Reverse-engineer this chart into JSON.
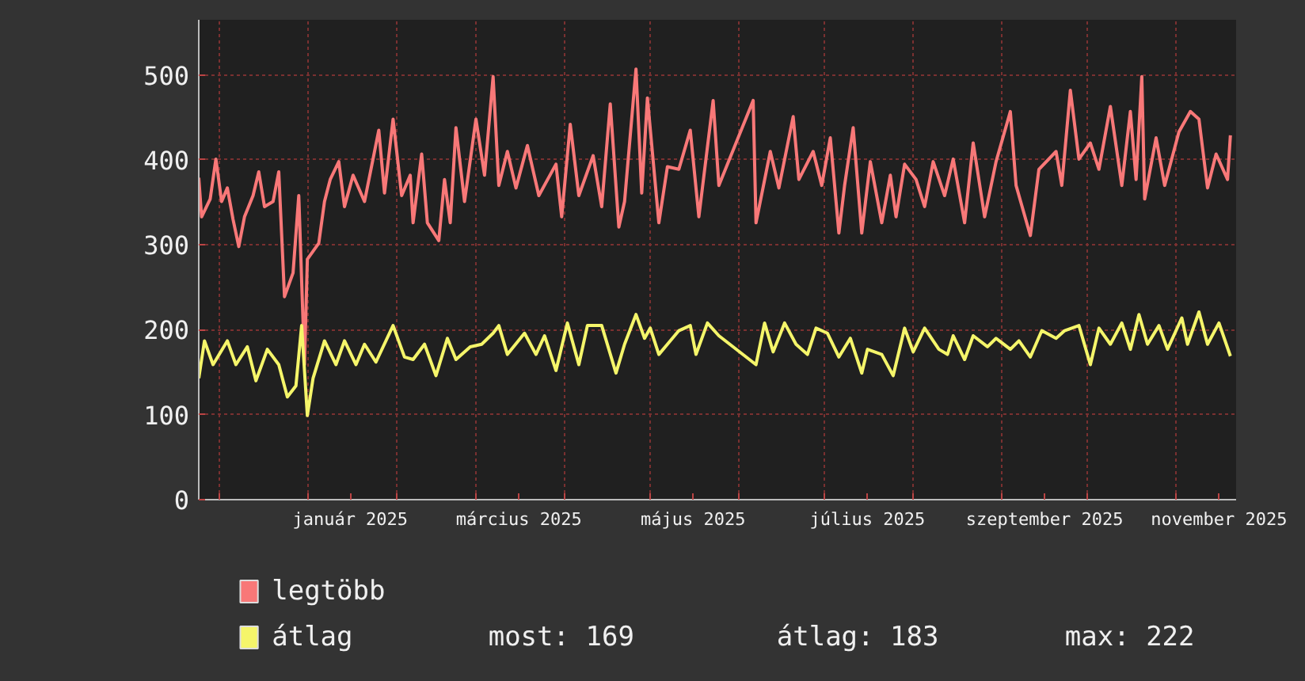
{
  "chart_data": {
    "type": "line",
    "xlim": [
      "2024-11-24",
      "2025-11-22"
    ],
    "xticks": [
      {
        "value": "2024-12-01",
        "label": null
      },
      {
        "value": "2025-01-01",
        "label": null
      },
      {
        "value": "2025-01-16",
        "label": "január 2025"
      },
      {
        "value": "2025-02-01",
        "label": null
      },
      {
        "value": "2025-03-01",
        "label": null
      },
      {
        "value": "2025-03-16",
        "label": "március 2025"
      },
      {
        "value": "2025-04-01",
        "label": null
      },
      {
        "value": "2025-05-01",
        "label": null
      },
      {
        "value": "2025-05-16",
        "label": "május 2025"
      },
      {
        "value": "2025-06-01",
        "label": null
      },
      {
        "value": "2025-07-01",
        "label": null
      },
      {
        "value": "2025-07-16",
        "label": "július 2025"
      },
      {
        "value": "2025-08-01",
        "label": null
      },
      {
        "value": "2025-09-01",
        "label": null
      },
      {
        "value": "2025-09-16",
        "label": "szeptember 2025"
      },
      {
        "value": "2025-10-01",
        "label": null
      },
      {
        "value": "2025-11-01",
        "label": null
      },
      {
        "value": "2025-11-16",
        "label": "november 2025"
      }
    ],
    "ylim": [
      0,
      565
    ],
    "yticks": [
      0,
      100,
      200,
      300,
      400,
      500
    ],
    "grid": true,
    "legend": "bottom left",
    "line_style": "solid",
    "annotations": [
      "most: 169",
      "átlag: 183",
      "max: 222"
    ],
    "series": [
      {
        "name": "legtöbb",
        "color": "#f87878",
        "x": [
          "2024-11-24",
          "2024-11-25",
          "2024-11-28",
          "2024-11-30",
          "2024-12-02",
          "2024-12-04",
          "2024-12-06",
          "2024-12-08",
          "2024-12-10",
          "2024-12-13",
          "2024-12-15",
          "2024-12-17",
          "2024-12-20",
          "2024-12-22",
          "2024-12-24",
          "2024-12-27",
          "2024-12-29",
          "2024-12-31",
          "2025-01-01",
          "2025-01-05",
          "2025-01-07",
          "2025-01-09",
          "2025-01-12",
          "2025-01-14",
          "2025-01-17",
          "2025-01-21",
          "2025-01-26",
          "2025-01-28",
          "2025-01-31",
          "2025-02-03",
          "2025-02-06",
          "2025-02-07",
          "2025-02-10",
          "2025-02-12",
          "2025-02-16",
          "2025-02-18",
          "2025-02-20",
          "2025-02-22",
          "2025-02-25",
          "2025-03-01",
          "2025-03-04",
          "2025-03-07",
          "2025-03-09",
          "2025-03-12",
          "2025-03-15",
          "2025-03-19",
          "2025-03-23",
          "2025-03-29",
          "2025-03-31",
          "2025-04-03",
          "2025-04-06",
          "2025-04-11",
          "2025-04-14",
          "2025-04-17",
          "2025-04-20",
          "2025-04-22",
          "2025-04-26",
          "2025-04-28",
          "2025-04-30",
          "2025-05-04",
          "2025-05-07",
          "2025-05-11",
          "2025-05-15",
          "2025-05-18",
          "2025-05-23",
          "2025-05-25",
          "2025-06-06",
          "2025-06-07",
          "2025-06-12",
          "2025-06-15",
          "2025-06-20",
          "2025-06-22",
          "2025-06-27",
          "2025-06-30",
          "2025-07-03",
          "2025-07-06",
          "2025-07-08",
          "2025-07-11",
          "2025-07-14",
          "2025-07-17",
          "2025-07-21",
          "2025-07-24",
          "2025-07-26",
          "2025-07-29",
          "2025-08-02",
          "2025-08-05",
          "2025-08-08",
          "2025-08-12",
          "2025-08-15",
          "2025-08-19",
          "2025-08-22",
          "2025-08-26",
          "2025-08-30",
          "2025-09-04",
          "2025-09-06",
          "2025-09-11",
          "2025-09-14",
          "2025-09-20",
          "2025-09-22",
          "2025-09-25",
          "2025-09-28",
          "2025-10-02",
          "2025-10-05",
          "2025-10-09",
          "2025-10-13",
          "2025-10-16",
          "2025-10-18",
          "2025-10-20",
          "2025-10-21",
          "2025-10-25",
          "2025-10-28",
          "2025-11-02",
          "2025-11-06",
          "2025-11-09",
          "2025-11-12",
          "2025-11-15",
          "2025-11-19",
          "2025-11-20"
        ],
        "values": [
          379,
          333,
          354,
          401,
          351,
          367,
          330,
          298,
          333,
          358,
          386,
          345,
          351,
          386,
          239,
          267,
          358,
          159,
          283,
          302,
          351,
          377,
          398,
          345,
          382,
          351,
          435,
          361,
          448,
          358,
          382,
          326,
          407,
          326,
          305,
          377,
          326,
          438,
          351,
          448,
          382,
          498,
          370,
          410,
          367,
          417,
          358,
          395,
          333,
          442,
          358,
          405,
          345,
          466,
          321,
          351,
          507,
          361,
          473,
          326,
          392,
          389,
          435,
          333,
          470,
          370,
          470,
          326,
          410,
          367,
          451,
          377,
          410,
          370,
          426,
          314,
          370,
          438,
          314,
          398,
          326,
          382,
          333,
          395,
          377,
          345,
          398,
          358,
          401,
          326,
          420,
          333,
          398,
          457,
          370,
          311,
          389,
          410,
          370,
          482,
          401,
          420,
          389,
          463,
          370,
          457,
          377,
          498,
          354,
          426,
          370,
          433,
          457,
          448,
          367,
          407,
          377,
          429
        ]
      },
      {
        "name": "átlag",
        "color": "#f5f56a",
        "x": [
          "2024-11-24",
          "2024-11-26",
          "2024-11-29",
          "2024-12-04",
          "2024-12-07",
          "2024-12-11",
          "2024-12-14",
          "2024-12-18",
          "2024-12-22",
          "2024-12-25",
          "2024-12-28",
          "2024-12-30",
          "2025-01-01",
          "2025-01-03",
          "2025-01-07",
          "2025-01-11",
          "2025-01-14",
          "2025-01-18",
          "2025-01-21",
          "2025-01-25",
          "2025-01-31",
          "2025-02-04",
          "2025-02-07",
          "2025-02-11",
          "2025-02-15",
          "2025-02-19",
          "2025-02-22",
          "2025-02-27",
          "2025-03-03",
          "2025-03-07",
          "2025-03-09",
          "2025-03-12",
          "2025-03-18",
          "2025-03-22",
          "2025-03-25",
          "2025-03-29",
          "2025-04-02",
          "2025-04-06",
          "2025-04-09",
          "2025-04-14",
          "2025-04-19",
          "2025-04-22",
          "2025-04-26",
          "2025-04-29",
          "2025-05-01",
          "2025-05-04",
          "2025-05-07",
          "2025-05-11",
          "2025-05-15",
          "2025-05-17",
          "2025-05-21",
          "2025-05-25",
          "2025-06-07",
          "2025-06-10",
          "2025-06-13",
          "2025-06-17",
          "2025-06-21",
          "2025-06-25",
          "2025-06-28",
          "2025-07-02",
          "2025-07-06",
          "2025-07-10",
          "2025-07-14",
          "2025-07-16",
          "2025-07-21",
          "2025-07-25",
          "2025-07-29",
          "2025-08-01",
          "2025-08-05",
          "2025-08-10",
          "2025-08-13",
          "2025-08-15",
          "2025-08-19",
          "2025-08-22",
          "2025-08-27",
          "2025-08-30",
          "2025-09-04",
          "2025-09-07",
          "2025-09-11",
          "2025-09-15",
          "2025-09-20",
          "2025-09-23",
          "2025-09-28",
          "2025-10-02",
          "2025-10-05",
          "2025-10-09",
          "2025-10-13",
          "2025-10-16",
          "2025-10-19",
          "2025-10-22",
          "2025-10-26",
          "2025-10-29",
          "2025-11-03",
          "2025-11-05",
          "2025-11-09",
          "2025-11-12",
          "2025-11-16",
          "2025-11-20"
        ],
        "values": [
          143,
          187,
          159,
          187,
          159,
          180,
          140,
          177,
          159,
          121,
          134,
          205,
          99,
          143,
          187,
          159,
          187,
          159,
          183,
          162,
          205,
          168,
          165,
          183,
          146,
          190,
          165,
          180,
          183,
          196,
          205,
          171,
          196,
          171,
          193,
          152,
          208,
          159,
          205,
          205,
          149,
          183,
          218,
          190,
          202,
          171,
          183,
          199,
          205,
          171,
          208,
          193,
          159,
          208,
          174,
          208,
          183,
          171,
          202,
          196,
          168,
          190,
          149,
          177,
          171,
          146,
          202,
          174,
          202,
          177,
          171,
          193,
          165,
          193,
          180,
          190,
          177,
          187,
          168,
          199,
          190,
          199,
          205,
          159,
          202,
          183,
          208,
          177,
          218,
          183,
          205,
          177,
          214,
          183,
          221,
          183,
          208,
          169
        ]
      }
    ]
  }
}
